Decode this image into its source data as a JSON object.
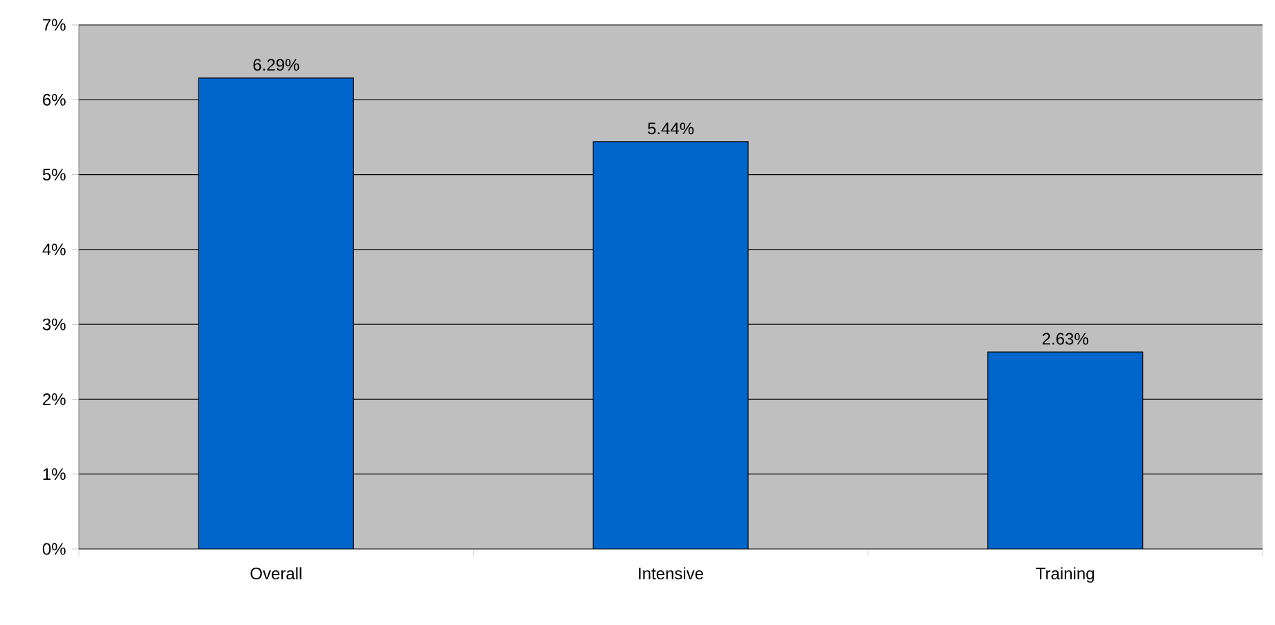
{
  "chart_data": {
    "type": "bar",
    "categories": [
      "Overall",
      "Intensive",
      "Training"
    ],
    "values": [
      6.29,
      5.44,
      2.63
    ],
    "value_labels": [
      "6.29%",
      "5.44%",
      "2.63%"
    ],
    "color": "#0066cc",
    "ylim": [
      0,
      7
    ],
    "yticks": [
      {
        "value": 0,
        "label": "0%"
      },
      {
        "value": 1,
        "label": "1%"
      },
      {
        "value": 2,
        "label": "2%"
      },
      {
        "value": 3,
        "label": "3%"
      },
      {
        "value": 4,
        "label": "4%"
      },
      {
        "value": 5,
        "label": "5%"
      },
      {
        "value": 6,
        "label": "6%"
      },
      {
        "value": 7,
        "label": "7%"
      }
    ],
    "grid": "y"
  }
}
